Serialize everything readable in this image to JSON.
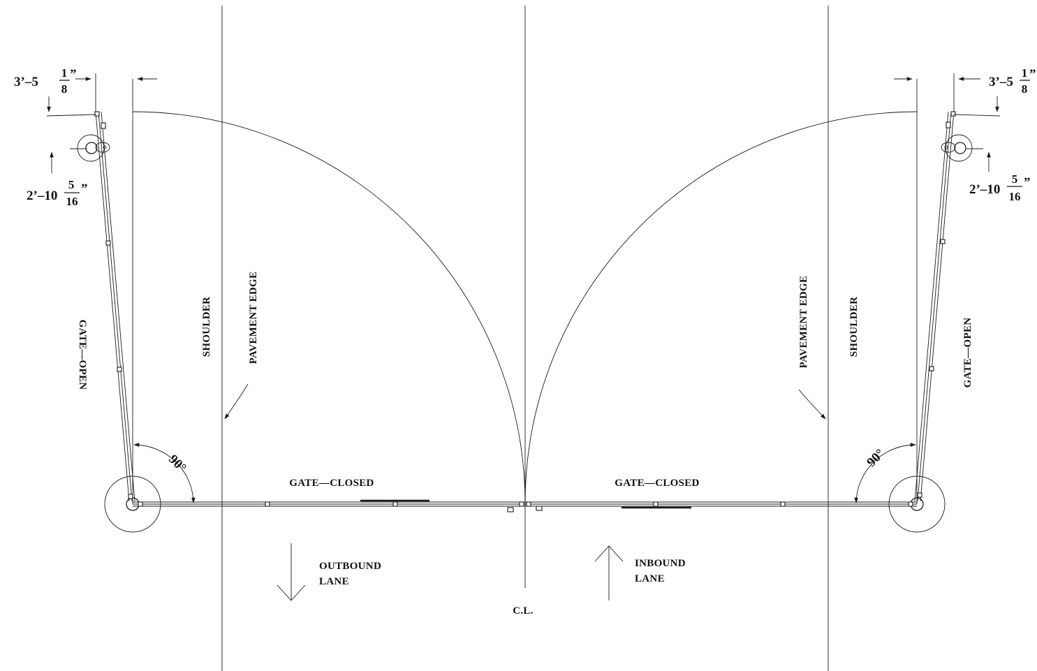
{
  "labels": {
    "shoulder": "SHOULDER",
    "pavement_edge": "PAVEMENT EDGE",
    "gate_open": "GATE—OPEN",
    "gate_closed": "GATE—CLOSED",
    "outbound_lane": [
      "OUTBOUND",
      "LANE"
    ],
    "inbound_lane": [
      "INBOUND",
      "LANE"
    ],
    "centerline": "C.L.",
    "angle": "90°"
  },
  "dimensions": {
    "offset_top": {
      "whole": "3’–5",
      "num": "1",
      "den": "8",
      "unit": "”"
    },
    "offset_bottom": {
      "whole": "2’–10",
      "num": "5",
      "den": "16",
      "unit": "”"
    }
  },
  "colors": {
    "line": "#1a1a1a",
    "background": "#ffffff"
  }
}
